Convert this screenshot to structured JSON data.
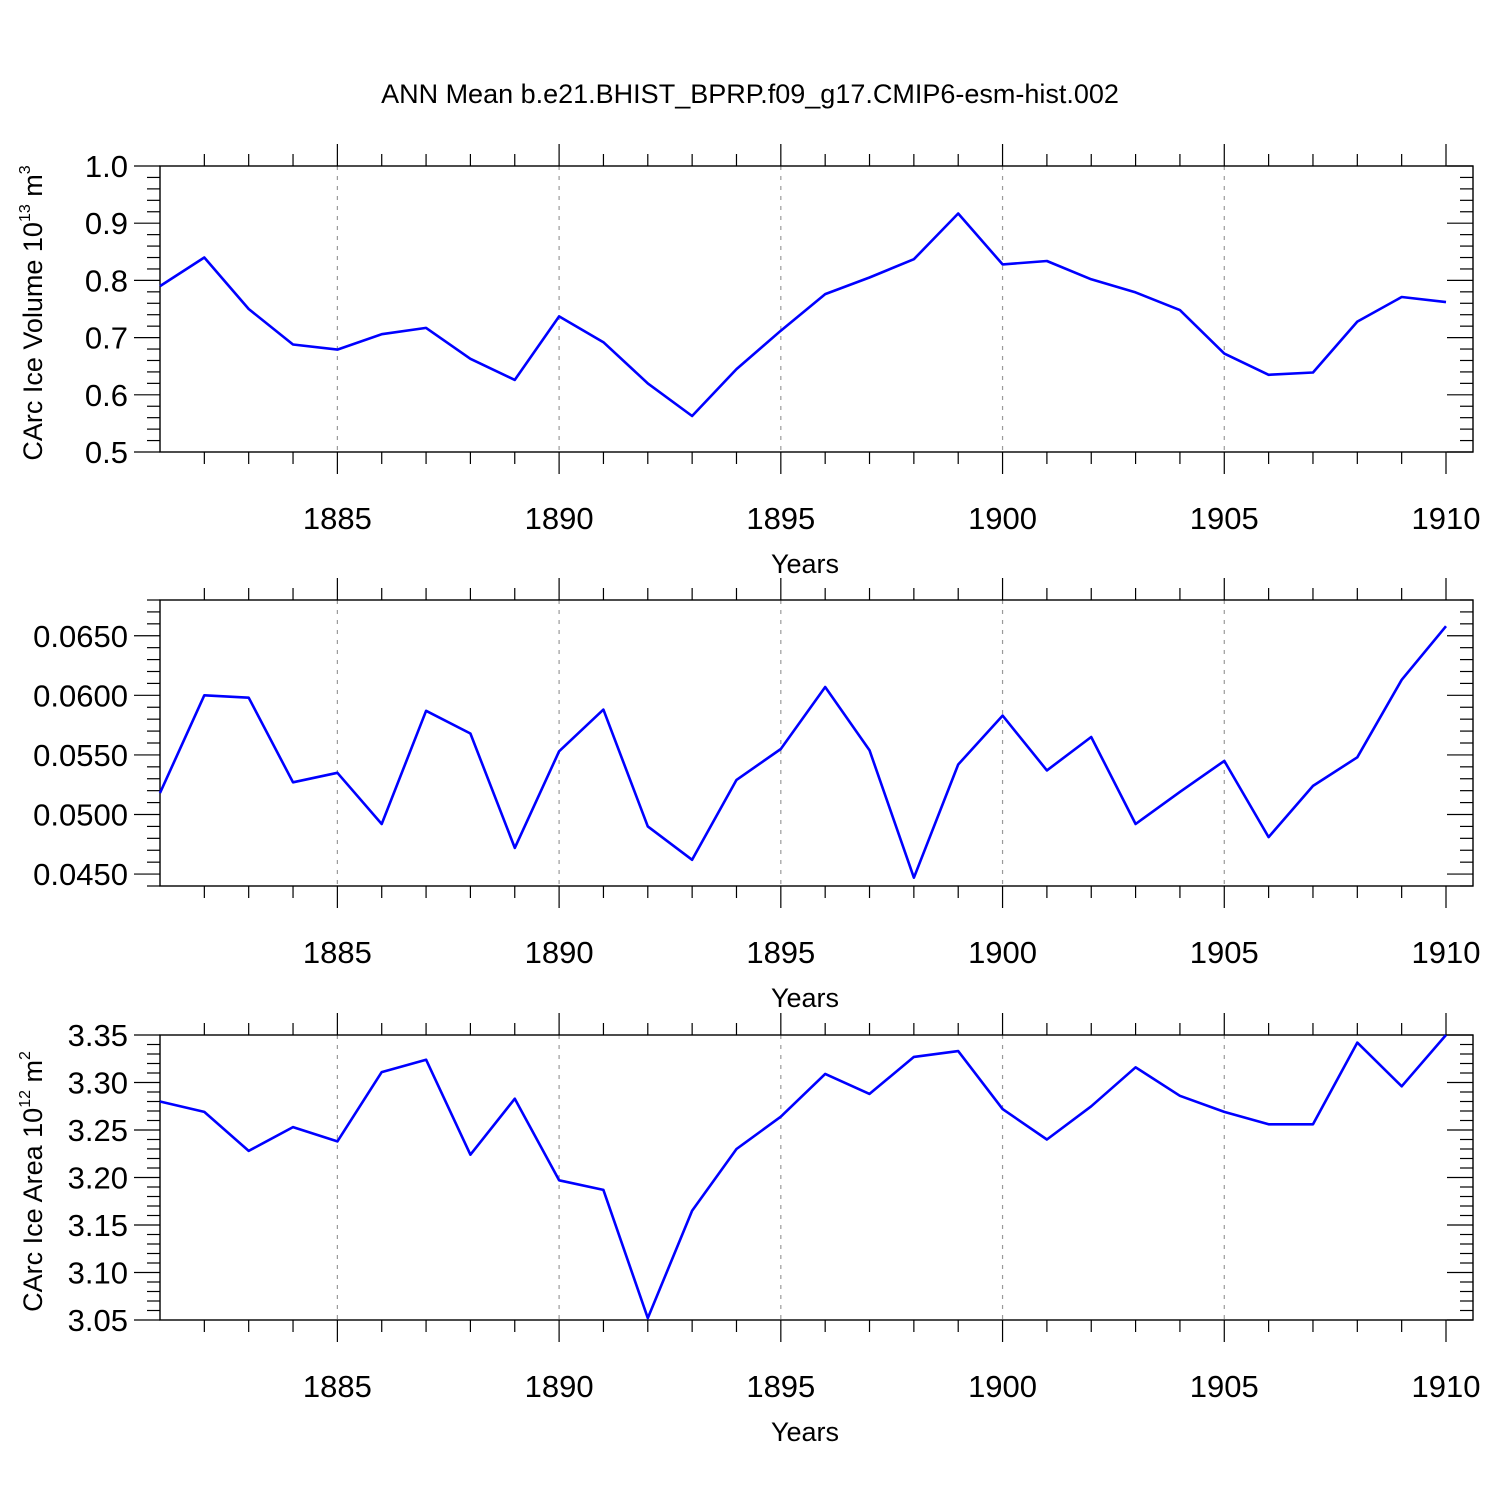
{
  "title": "ANN Mean b.e21.BHIST_BPRP.f09_g17.CMIP6-esm-hist.002",
  "line_color": "#0000ff",
  "chart_data": [
    {
      "type": "line",
      "xlabel": "Years",
      "ylabel": {
        "base": "CArc Ice Volume 10",
        "exp": "13",
        "unit": " m",
        "unit_exp": "3"
      },
      "xlim": [
        1881,
        1910
      ],
      "ylim": [
        0.5,
        1.0
      ],
      "xticks": [
        1885,
        1890,
        1895,
        1900,
        1905,
        1910
      ],
      "xtick_labels": [
        "1885",
        "1890",
        "1895",
        "1900",
        "1905",
        "1910"
      ],
      "yticks": [
        0.5,
        0.6,
        0.7,
        0.8,
        0.9,
        1.0
      ],
      "ytick_labels": [
        "0.5",
        "0.6",
        "0.7",
        "0.8",
        "0.9",
        "1.0"
      ],
      "grid": "vertical dashed at major x ticks",
      "x": [
        1881,
        1882,
        1883,
        1884,
        1885,
        1886,
        1887,
        1888,
        1889,
        1890,
        1891,
        1892,
        1893,
        1894,
        1895,
        1896,
        1897,
        1898,
        1899,
        1900,
        1901,
        1902,
        1903,
        1904,
        1905,
        1906,
        1907,
        1908,
        1909,
        1910
      ],
      "y": [
        0.79,
        0.84,
        0.75,
        0.688,
        0.679,
        0.706,
        0.717,
        0.663,
        0.626,
        0.737,
        0.692,
        0.62,
        0.563,
        0.645,
        0.712,
        0.776,
        0.805,
        0.837,
        0.917,
        0.828,
        0.834,
        0.802,
        0.779,
        0.748,
        0.672,
        0.635,
        0.639,
        0.728,
        0.771,
        0.762
      ]
    },
    {
      "type": "line",
      "xlabel": "Years",
      "ylabel": null,
      "xlim": [
        1881,
        1910
      ],
      "ylim": [
        0.044,
        0.068
      ],
      "xticks": [
        1885,
        1890,
        1895,
        1900,
        1905,
        1910
      ],
      "xtick_labels": [
        "1885",
        "1890",
        "1895",
        "1900",
        "1905",
        "1910"
      ],
      "yticks": [
        0.045,
        0.05,
        0.055,
        0.06,
        0.065
      ],
      "ytick_labels": [
        "0.0450",
        "0.0500",
        "0.0550",
        "0.0600",
        "0.0650"
      ],
      "grid": "vertical dashed at major x ticks",
      "x": [
        1881,
        1882,
        1883,
        1884,
        1885,
        1886,
        1887,
        1888,
        1889,
        1890,
        1891,
        1892,
        1893,
        1894,
        1895,
        1896,
        1897,
        1898,
        1899,
        1900,
        1901,
        1902,
        1903,
        1904,
        1905,
        1906,
        1907,
        1908,
        1909,
        1910
      ],
      "y": [
        0.0518,
        0.06,
        0.0598,
        0.0527,
        0.0535,
        0.0492,
        0.0587,
        0.0568,
        0.0472,
        0.0553,
        0.0588,
        0.049,
        0.0462,
        0.0529,
        0.0555,
        0.0607,
        0.0554,
        0.0447,
        0.0542,
        0.0583,
        0.0537,
        0.0565,
        0.0492,
        0.0519,
        0.0545,
        0.0481,
        0.0524,
        0.0548,
        0.0613,
        0.0658
      ]
    },
    {
      "type": "line",
      "xlabel": "Years",
      "ylabel": {
        "base": "CArc Ice Area 10",
        "exp": "12",
        "unit": " m",
        "unit_exp": "2"
      },
      "xlim": [
        1881,
        1910
      ],
      "ylim": [
        3.05,
        3.35
      ],
      "xticks": [
        1885,
        1890,
        1895,
        1900,
        1905,
        1910
      ],
      "xtick_labels": [
        "1885",
        "1890",
        "1895",
        "1900",
        "1905",
        "1910"
      ],
      "yticks": [
        3.05,
        3.1,
        3.15,
        3.2,
        3.25,
        3.3,
        3.35
      ],
      "ytick_labels": [
        "3.05",
        "3.10",
        "3.15",
        "3.20",
        "3.25",
        "3.30",
        "3.35"
      ],
      "grid": "vertical dashed at major x ticks",
      "x": [
        1881,
        1882,
        1883,
        1884,
        1885,
        1886,
        1887,
        1888,
        1889,
        1890,
        1891,
        1892,
        1893,
        1894,
        1895,
        1896,
        1897,
        1898,
        1899,
        1900,
        1901,
        1902,
        1903,
        1904,
        1905,
        1906,
        1907,
        1908,
        1909,
        1910
      ],
      "y": [
        3.28,
        3.269,
        3.228,
        3.253,
        3.238,
        3.311,
        3.324,
        3.224,
        3.283,
        3.197,
        3.187,
        3.052,
        3.165,
        3.23,
        3.264,
        3.309,
        3.288,
        3.327,
        3.333,
        3.272,
        3.24,
        3.275,
        3.316,
        3.286,
        3.269,
        3.256,
        3.256,
        3.342,
        3.296,
        3.35
      ]
    }
  ]
}
